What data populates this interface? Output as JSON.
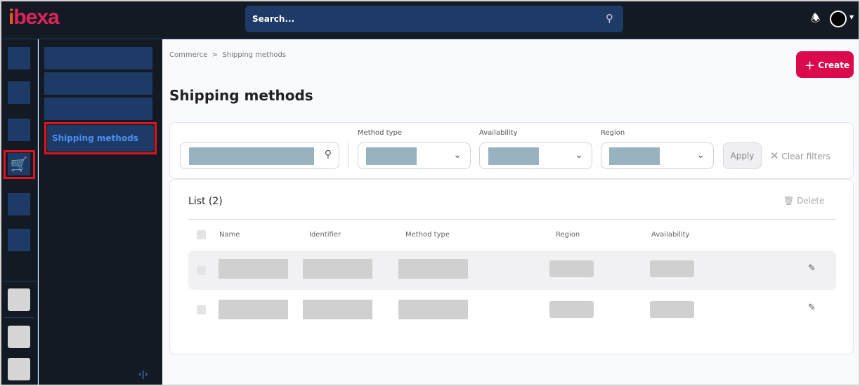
{
  "header": {
    "logo": "ibexa",
    "search_placeholder": "Search..."
  },
  "sidebar": {
    "active_item": "Shipping methods",
    "active_icon": "cart-icon"
  },
  "breadcrumb": [
    "Commerce",
    "Shipping methods"
  ],
  "breadcrumb_sep": ">",
  "page_title": "Shipping methods",
  "create_label": "Create",
  "filters": {
    "method_type_label": "Method type",
    "availability_label": "Availability",
    "region_label": "Region",
    "apply_label": "Apply",
    "clear_label": "Clear filters"
  },
  "list": {
    "title": "List (2)",
    "delete_label": "Delete",
    "columns": [
      "Name",
      "Identifier",
      "Method type",
      "Region",
      "Availability"
    ]
  },
  "colors": {
    "accent": "#db0a4c",
    "nav": "#1e3a66",
    "highlight": "#e0141e"
  }
}
